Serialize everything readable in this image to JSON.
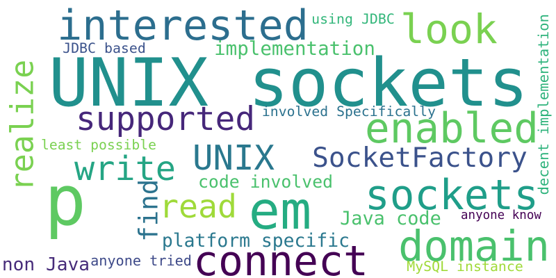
{
  "words": [
    {
      "text": "UNIX sockets",
      "color": "#21908d"
    },
    {
      "text": "p",
      "color": "#5ec962"
    },
    {
      "text": "interested",
      "color": "#2c6e8e"
    },
    {
      "text": "look",
      "color": "#7ad151"
    },
    {
      "text": "realize",
      "color": "#7ad151"
    },
    {
      "text": "enabled",
      "color": "#5ec962"
    },
    {
      "text": "supported",
      "color": "#46277a"
    },
    {
      "text": "UNIX",
      "color": "#2a788e"
    },
    {
      "text": "SocketFactory",
      "color": "#3b528b"
    },
    {
      "text": "write",
      "color": "#25a584"
    },
    {
      "text": "sockets",
      "color": "#1f9e89"
    },
    {
      "text": "em",
      "color": "#25ac82"
    },
    {
      "text": "read",
      "color": "#9fda3a"
    },
    {
      "text": "domain",
      "color": "#4ac16d"
    },
    {
      "text": "connect",
      "color": "#440154"
    },
    {
      "text": "find",
      "color": "#2c738e"
    },
    {
      "text": "decent implementation",
      "color": "#2eb37c"
    },
    {
      "text": "implementation",
      "color": "#4ac16d"
    },
    {
      "text": "platform specific",
      "color": "#2a788e"
    },
    {
      "text": "code involved",
      "color": "#4ac16d"
    },
    {
      "text": "Java code",
      "color": "#4ac16d"
    },
    {
      "text": "non Java",
      "color": "#472c7a"
    },
    {
      "text": "using JDBC",
      "color": "#32b67a"
    },
    {
      "text": "JDBC based",
      "color": "#3b528b"
    },
    {
      "text": "involved Specifically",
      "color": "#2c728e"
    },
    {
      "text": "least possible",
      "color": "#7ad151"
    },
    {
      "text": "anyone know",
      "color": "#440154"
    },
    {
      "text": "anyone tried",
      "color": "#3e4a89"
    },
    {
      "text": "MySQL instance",
      "color": "#a0da39"
    }
  ]
}
